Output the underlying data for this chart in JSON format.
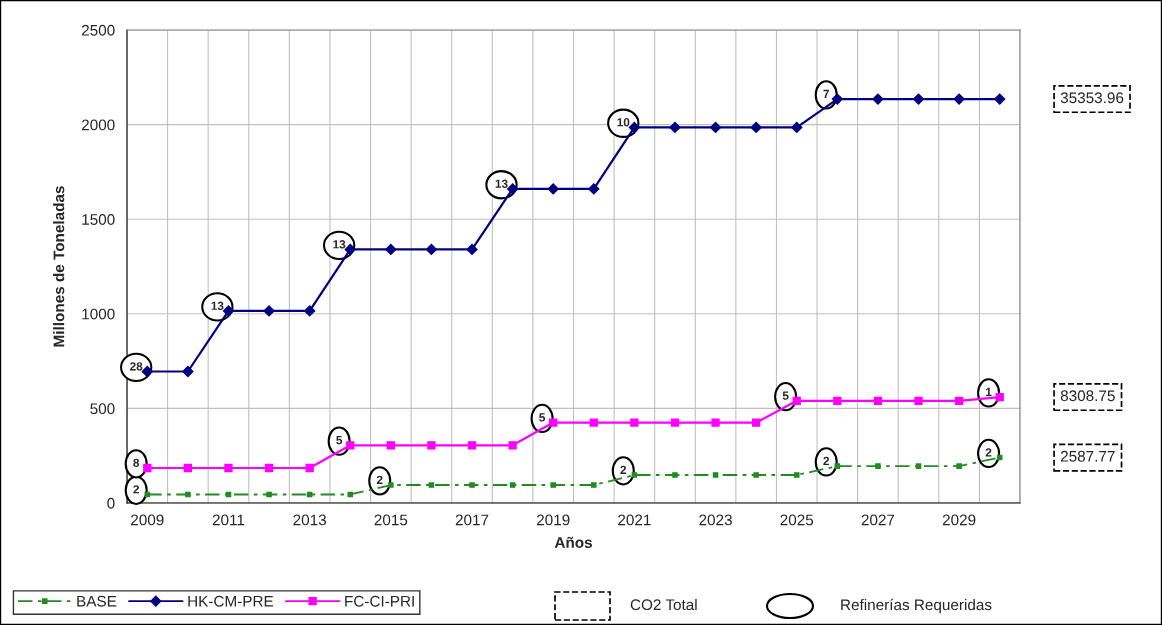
{
  "chart_data": {
    "type": "line",
    "xlabel": "Años",
    "ylabel": "Millones de Toneladas",
    "x": [
      2009,
      2010,
      2011,
      2012,
      2013,
      2014,
      2015,
      2016,
      2017,
      2018,
      2019,
      2020,
      2021,
      2022,
      2023,
      2024,
      2025,
      2026,
      2027,
      2028,
      2029,
      2030
    ],
    "xlim": [
      2008.5,
      2030.5
    ],
    "xticks": [
      2009,
      2011,
      2013,
      2015,
      2017,
      2019,
      2021,
      2023,
      2025,
      2027,
      2029,
      {
        "value": 2008.5,
        "label": null
      },
      {
        "value": 2009.5,
        "label": null
      },
      {
        "value": 2010.5,
        "label": null
      },
      {
        "value": 2011.5,
        "label": null
      },
      {
        "value": 2012.5,
        "label": null
      },
      {
        "value": 2013.5,
        "label": null
      },
      {
        "value": 2014.5,
        "label": null
      },
      {
        "value": 2015.5,
        "label": null
      },
      {
        "value": 2016.5,
        "label": null
      },
      {
        "value": 2017.5,
        "label": null
      },
      {
        "value": 2018.5,
        "label": null
      },
      {
        "value": 2019.5,
        "label": null
      },
      {
        "value": 2020.5,
        "label": null
      },
      {
        "value": 2021.5,
        "label": null
      },
      {
        "value": 2022.5,
        "label": null
      },
      {
        "value": 2023.5,
        "label": null
      },
      {
        "value": 2024.5,
        "label": null
      },
      {
        "value": 2025.5,
        "label": null
      },
      {
        "value": 2026.5,
        "label": null
      },
      {
        "value": 2027.5,
        "label": null
      },
      {
        "value": 2028.5,
        "label": null
      },
      {
        "value": 2029.5,
        "label": null
      },
      {
        "value": 2030.5,
        "label": null
      }
    ],
    "ylim": [
      0,
      2500
    ],
    "yticks": [
      0,
      500,
      1000,
      1500,
      2000,
      2500
    ],
    "grid": true,
    "legend": "bottom left",
    "series": [
      {
        "name": "BASE",
        "color": "#228b22",
        "marker": "square",
        "line_style": "dashdot",
        "values": [
          45,
          45,
          45,
          45,
          45,
          45,
          95,
          95,
          95,
          95,
          95,
          95,
          148,
          148,
          148,
          148,
          148,
          195,
          195,
          195,
          195,
          240
        ]
      },
      {
        "name": "HK-CM-PRE",
        "color": "#000080",
        "marker": "diamond",
        "line_style": "solid",
        "values": [
          695,
          695,
          1015,
          1015,
          1015,
          1340,
          1340,
          1340,
          1340,
          1660,
          1660,
          1660,
          1985,
          1985,
          1985,
          1985,
          1985,
          2135,
          2135,
          2135,
          2135,
          2135
        ]
      },
      {
        "name": "FC-CI-PRI",
        "color": "#ff00ff",
        "marker": "square",
        "line_style": "solid",
        "values": [
          185,
          185,
          185,
          185,
          185,
          305,
          305,
          305,
          305,
          305,
          425,
          425,
          425,
          425,
          425,
          425,
          540,
          540,
          540,
          540,
          540,
          560
        ]
      }
    ],
    "annotations": [
      {
        "text": "2",
        "x": 2009,
        "y": 45
      },
      {
        "text": "2",
        "x": 2015,
        "y": 95
      },
      {
        "text": "2",
        "x": 2021,
        "y": 148
      },
      {
        "text": "2",
        "x": 2026,
        "y": 195
      },
      {
        "text": "2",
        "x": 2030,
        "y": 240
      },
      {
        "text": "28",
        "x": 2009,
        "y": 695
      },
      {
        "text": "13",
        "x": 2011,
        "y": 1015
      },
      {
        "text": "13",
        "x": 2014,
        "y": 1340
      },
      {
        "text": "13",
        "x": 2018,
        "y": 1660
      },
      {
        "text": "10",
        "x": 2021,
        "y": 1985
      },
      {
        "text": "7",
        "x": 2026,
        "y": 2135
      },
      {
        "text": "8",
        "x": 2009,
        "y": 185
      },
      {
        "text": "5",
        "x": 2014,
        "y": 305
      },
      {
        "text": "5",
        "x": 2019,
        "y": 425
      },
      {
        "text": "5",
        "x": 2025,
        "y": 540
      },
      {
        "text": "1",
        "x": 2030,
        "y": 560
      },
      "35353.96",
      "8308.75",
      "2587.77",
      "CO2 Total",
      "Refinerías Requeridas"
    ]
  }
}
